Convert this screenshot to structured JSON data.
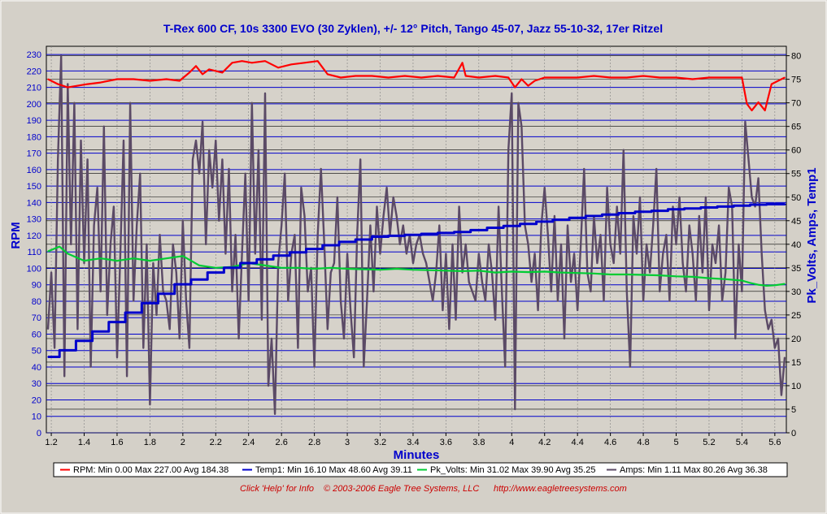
{
  "chart_data": {
    "type": "line",
    "title": "T-Rex 600 CF, 10s 3300 EVO (30 Zyklen), +/- 12° Pitch, Tango 45-07, Jazz 55-10-32, 17er Ritzel",
    "xlabel": "Minutes",
    "ylabel_left": "RPM",
    "ylabel_right": "Pk_Volts, Amps, Temp1",
    "xlim": [
      1.17,
      5.67
    ],
    "ylim_left": [
      0,
      235
    ],
    "ylim_right": [
      0,
      82
    ],
    "x_ticks": [
      "1.2",
      "1.4",
      "1.6",
      "1.8",
      "2",
      "2.2",
      "2.4",
      "2.6",
      "2.8",
      "3",
      "3.2",
      "3.4",
      "3.6",
      "3.8",
      "4",
      "4.2",
      "4.4",
      "4.6",
      "4.8",
      "5",
      "5.2",
      "5.4",
      "5.6"
    ],
    "y_ticks_left": [
      "0",
      "10",
      "20",
      "30",
      "40",
      "50",
      "60",
      "70",
      "80",
      "90",
      "100",
      "110",
      "120",
      "130",
      "140",
      "150",
      "160",
      "170",
      "180",
      "190",
      "200",
      "210",
      "220",
      "230"
    ],
    "y_ticks_right": [
      "0",
      "5",
      "10",
      "15",
      "20",
      "25",
      "30",
      "35",
      "40",
      "45",
      "50",
      "55",
      "60",
      "65",
      "70",
      "75",
      "80"
    ],
    "grid": true,
    "series": [
      {
        "name": "RPM",
        "axis": "left",
        "color": "#ff0000",
        "legend": "RPM:  Min 0.00 Max 227.00 Avg 184.38",
        "x": [
          1.18,
          1.24,
          1.3,
          1.36,
          1.42,
          1.5,
          1.6,
          1.7,
          1.8,
          1.9,
          1.98,
          2.04,
          2.08,
          2.12,
          2.16,
          2.2,
          2.24,
          2.3,
          2.36,
          2.42,
          2.5,
          2.58,
          2.66,
          2.74,
          2.82,
          2.88,
          2.96,
          3.05,
          3.15,
          3.25,
          3.35,
          3.45,
          3.55,
          3.65,
          3.7,
          3.72,
          3.8,
          3.9,
          3.98,
          4.02,
          4.06,
          4.1,
          4.14,
          4.2,
          4.3,
          4.4,
          4.5,
          4.6,
          4.7,
          4.8,
          4.9,
          5.0,
          5.1,
          5.2,
          5.3,
          5.4,
          5.43,
          5.46,
          5.5,
          5.54,
          5.58,
          5.62,
          5.66
        ],
        "y": [
          215,
          212,
          210,
          211,
          212,
          213,
          215,
          215,
          214,
          215,
          214,
          219,
          223,
          218,
          221,
          220,
          219,
          225,
          226,
          225,
          226,
          222,
          224,
          225,
          226,
          218,
          216,
          217,
          217,
          216,
          217,
          216,
          217,
          216,
          225,
          217,
          216,
          217,
          216,
          210,
          215,
          211,
          214,
          216,
          216,
          216,
          217,
          216,
          216,
          217,
          216,
          216,
          215,
          216,
          216,
          216,
          200,
          196,
          201,
          196,
          212,
          214,
          216
        ]
      },
      {
        "name": "Temp1",
        "axis": "right",
        "color": "#0000cc",
        "legend": "Temp1:  Min 16.10 Max 48.60 Avg 39.11",
        "x": [
          1.18,
          1.25,
          1.35,
          1.45,
          1.55,
          1.65,
          1.75,
          1.85,
          1.95,
          2.05,
          2.15,
          2.25,
          2.35,
          2.45,
          2.55,
          2.65,
          2.75,
          2.85,
          2.95,
          3.05,
          3.15,
          3.25,
          3.35,
          3.45,
          3.55,
          3.65,
          3.75,
          3.85,
          3.95,
          4.05,
          4.15,
          4.25,
          4.35,
          4.45,
          4.55,
          4.65,
          4.75,
          4.85,
          4.95,
          5.05,
          5.15,
          5.25,
          5.35,
          5.45,
          5.55,
          5.66
        ],
        "y": [
          16.1,
          17.5,
          19.5,
          21.5,
          23.5,
          25.5,
          27.5,
          29.5,
          31.5,
          32.5,
          34.0,
          35.0,
          36.0,
          36.8,
          37.6,
          38.3,
          39.0,
          39.8,
          40.5,
          41.0,
          41.6,
          41.8,
          42.0,
          42.2,
          42.4,
          42.6,
          43.0,
          43.5,
          43.9,
          44.3,
          44.8,
          45.2,
          45.6,
          46.0,
          46.3,
          46.6,
          46.9,
          47.1,
          47.4,
          47.6,
          47.8,
          48.0,
          48.2,
          48.4,
          48.5,
          48.6
        ]
      },
      {
        "name": "Pk_Volts",
        "axis": "right",
        "color": "#00cc33",
        "legend": "Pk_Volts:  Min 31.02 Max 39.90 Avg 35.25",
        "x": [
          1.18,
          1.25,
          1.3,
          1.4,
          1.5,
          1.6,
          1.7,
          1.8,
          1.9,
          2.0,
          2.05,
          2.1,
          2.2,
          2.3,
          2.4,
          2.5,
          2.6,
          2.7,
          2.8,
          2.9,
          3.0,
          3.1,
          3.2,
          3.3,
          3.4,
          3.5,
          3.6,
          3.7,
          3.8,
          3.9,
          4.0,
          4.1,
          4.2,
          4.3,
          4.4,
          4.5,
          4.6,
          4.7,
          4.8,
          4.9,
          5.0,
          5.1,
          5.2,
          5.3,
          5.4,
          5.45,
          5.5,
          5.55,
          5.6,
          5.66
        ],
        "y": [
          38.5,
          39.5,
          38.0,
          36.5,
          37.0,
          36.5,
          37.0,
          36.5,
          37.0,
          37.5,
          36.5,
          35.5,
          35.0,
          35.2,
          36.0,
          35.5,
          35.0,
          35.0,
          34.8,
          35.0,
          34.8,
          34.7,
          34.6,
          34.8,
          34.6,
          34.5,
          34.4,
          34.3,
          34.4,
          34.0,
          34.2,
          34.1,
          34.2,
          34.0,
          33.9,
          33.8,
          33.6,
          33.6,
          33.5,
          33.4,
          33.2,
          33.1,
          32.8,
          32.6,
          32.3,
          31.8,
          31.4,
          31.2,
          31.3,
          31.6
        ]
      },
      {
        "name": "Amps",
        "axis": "right",
        "color": "#5b4a66",
        "legend": "Amps:  Min 1.11 Max 80.26 Avg 36.38",
        "x": [
          1.18,
          1.2,
          1.22,
          1.24,
          1.26,
          1.28,
          1.3,
          1.32,
          1.34,
          1.36,
          1.38,
          1.4,
          1.42,
          1.44,
          1.46,
          1.48,
          1.5,
          1.52,
          1.54,
          1.56,
          1.58,
          1.6,
          1.62,
          1.64,
          1.66,
          1.68,
          1.7,
          1.72,
          1.74,
          1.76,
          1.78,
          1.8,
          1.82,
          1.84,
          1.86,
          1.88,
          1.9,
          1.92,
          1.94,
          1.96,
          1.98,
          2.0,
          2.02,
          2.04,
          2.06,
          2.08,
          2.1,
          2.12,
          2.14,
          2.16,
          2.18,
          2.2,
          2.22,
          2.24,
          2.26,
          2.28,
          2.3,
          2.32,
          2.34,
          2.36,
          2.38,
          2.4,
          2.42,
          2.44,
          2.46,
          2.48,
          2.5,
          2.52,
          2.54,
          2.56,
          2.58,
          2.6,
          2.62,
          2.64,
          2.66,
          2.68,
          2.7,
          2.72,
          2.74,
          2.76,
          2.78,
          2.8,
          2.82,
          2.84,
          2.86,
          2.88,
          2.9,
          2.92,
          2.94,
          2.96,
          2.98,
          3.0,
          3.02,
          3.04,
          3.06,
          3.08,
          3.1,
          3.12,
          3.14,
          3.16,
          3.18,
          3.2,
          3.22,
          3.24,
          3.26,
          3.28,
          3.3,
          3.32,
          3.34,
          3.36,
          3.38,
          3.4,
          3.42,
          3.44,
          3.46,
          3.48,
          3.5,
          3.52,
          3.54,
          3.56,
          3.58,
          3.6,
          3.62,
          3.64,
          3.66,
          3.68,
          3.7,
          3.72,
          3.74,
          3.76,
          3.78,
          3.8,
          3.82,
          3.84,
          3.86,
          3.88,
          3.9,
          3.92,
          3.94,
          3.96,
          3.98,
          4.0,
          4.02,
          4.04,
          4.06,
          4.08,
          4.1,
          4.12,
          4.14,
          4.16,
          4.18,
          4.2,
          4.22,
          4.24,
          4.26,
          4.28,
          4.3,
          4.32,
          4.34,
          4.36,
          4.38,
          4.4,
          4.42,
          4.44,
          4.46,
          4.48,
          4.5,
          4.52,
          4.54,
          4.56,
          4.58,
          4.6,
          4.62,
          4.64,
          4.66,
          4.68,
          4.7,
          4.72,
          4.74,
          4.76,
          4.78,
          4.8,
          4.82,
          4.84,
          4.86,
          4.88,
          4.9,
          4.92,
          4.94,
          4.96,
          4.98,
          5.0,
          5.02,
          5.04,
          5.06,
          5.08,
          5.1,
          5.12,
          5.14,
          5.16,
          5.18,
          5.2,
          5.22,
          5.24,
          5.26,
          5.28,
          5.3,
          5.32,
          5.34,
          5.36,
          5.38,
          5.4,
          5.42,
          5.44,
          5.46,
          5.48,
          5.5,
          5.52,
          5.54,
          5.56,
          5.58,
          5.6,
          5.62,
          5.64,
          5.66
        ],
        "y": [
          22,
          34,
          18,
          58,
          80,
          12,
          74,
          40,
          70,
          22,
          62,
          36,
          58,
          14,
          44,
          52,
          30,
          65,
          25,
          40,
          48,
          16,
          38,
          62,
          12,
          70,
          28,
          44,
          55,
          18,
          40,
          6,
          36,
          25,
          42,
          30,
          28,
          22,
          40,
          34,
          20,
          45,
          28,
          18,
          58,
          62,
          55,
          66,
          40,
          60,
          52,
          62,
          45,
          58,
          38,
          56,
          30,
          42,
          20,
          38,
          55,
          28,
          70,
          38,
          60,
          24,
          72,
          10,
          20,
          4,
          36,
          44,
          55,
          28,
          38,
          42,
          18,
          52,
          46,
          30,
          35,
          14,
          42,
          56,
          40,
          22,
          34,
          36,
          50,
          28,
          20,
          38,
          26,
          16,
          42,
          58,
          14,
          28,
          44,
          30,
          48,
          38,
          46,
          52,
          42,
          50,
          46,
          40,
          44,
          38,
          42,
          36,
          40,
          42,
          38,
          36,
          32,
          28,
          34,
          44,
          26,
          38,
          22,
          40,
          24,
          48,
          34,
          40,
          32,
          30,
          28,
          38,
          32,
          28,
          40,
          34,
          24,
          48,
          30,
          14,
          60,
          72,
          5,
          70,
          65,
          44,
          40,
          32,
          38,
          26,
          44,
          52,
          42,
          30,
          46,
          28,
          40,
          20,
          44,
          32,
          38,
          26,
          40,
          56,
          34,
          30,
          46,
          36,
          42,
          28,
          52,
          40,
          36,
          48,
          38,
          60,
          30,
          14,
          46,
          38,
          50,
          28,
          40,
          34,
          44,
          56,
          30,
          38,
          42,
          28,
          48,
          40,
          50,
          36,
          30,
          44,
          38,
          28,
          46,
          34,
          50,
          26,
          40,
          36,
          44,
          28,
          34,
          52,
          48,
          20,
          40,
          30,
          66,
          58,
          50,
          48,
          54,
          38,
          26,
          22,
          24,
          18,
          20,
          8,
          16
        ]
      }
    ],
    "legend_placement": "bottom"
  },
  "footer": {
    "help": "Click 'Help' for Info",
    "copyright": "© 2003-2006 Eagle Tree Systems, LLC",
    "url": "http://www.eagletreesystems.com"
  }
}
